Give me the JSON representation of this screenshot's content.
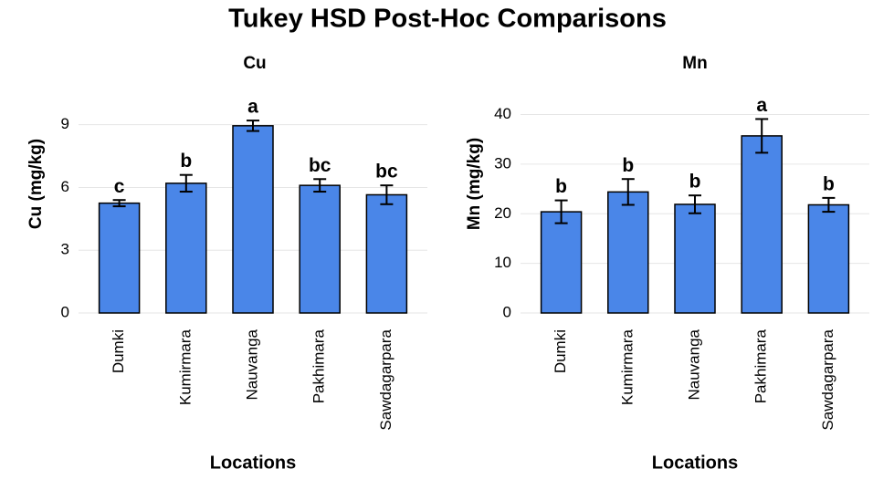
{
  "title": "Tukey HSD Post-Hoc Comparisons",
  "chart_data": [
    {
      "type": "bar",
      "title": "Cu",
      "x_label": "Locations",
      "y_label": "Cu (mg/kg)",
      "categories": [
        "Dumki",
        "Kumirmara",
        "Nauvanga",
        "Pakhimara",
        "Sawdagarpara"
      ],
      "values": [
        5.25,
        6.2,
        8.95,
        6.1,
        5.65
      ],
      "errors": [
        0.15,
        0.4,
        0.25,
        0.3,
        0.45
      ],
      "letters": [
        "c",
        "b",
        "a",
        "bc",
        "bc"
      ],
      "color": "#4a86e8",
      "ylim": [
        0,
        10.6
      ],
      "yticks": [
        0,
        3,
        6,
        9
      ],
      "grid": true
    },
    {
      "type": "bar",
      "title": "Mn",
      "x_label": "Locations",
      "y_label": "Mn (mg/kg)",
      "categories": [
        "Dumki",
        "Kumirmara",
        "Nauvanga",
        "Pakhimara",
        "Sawdagarpara"
      ],
      "values": [
        20.4,
        24.4,
        21.9,
        35.7,
        21.8
      ],
      "errors": [
        2.3,
        2.6,
        1.8,
        3.4,
        1.4
      ],
      "letters": [
        "b",
        "b",
        "b",
        "a",
        "b"
      ],
      "color": "#4a86e8",
      "ylim": [
        0,
        44.7
      ],
      "yticks": [
        0,
        10,
        20,
        30,
        40
      ],
      "grid": true
    }
  ]
}
